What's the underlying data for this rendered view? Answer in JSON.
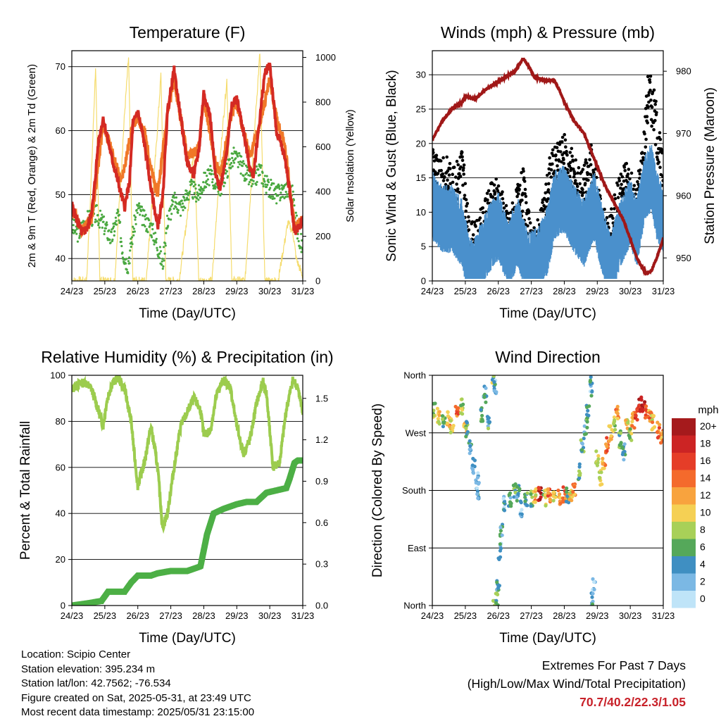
{
  "colors": {
    "temp_2m": "#d42a23",
    "temp_9m": "#f07828",
    "dewpoint": "#4aa840",
    "solar": "#f5dc6e",
    "wind": "#4a90cc",
    "gust": "#000000",
    "pressure": "#a01818",
    "rh": "#9ccc4e",
    "precip": "#4caf45",
    "extremes_text": "#c8222a"
  },
  "chart_data": [
    {
      "type": "line",
      "title": "Temperature (F)",
      "xlabel": "Time (Day/UTC)",
      "ylabel": "2m & 9m T (Red, Orange) & 2m Td (Green)",
      "y2label": "Solar Insolation (Yellow)",
      "x_ticks": [
        "24/23",
        "25/23",
        "26/23",
        "27/23",
        "28/23",
        "29/23",
        "30/23",
        "31/23"
      ],
      "xlim": [
        0,
        7
      ],
      "ylim": [
        36.5,
        72.5
      ],
      "y_ticks": [
        40,
        50,
        60,
        70
      ],
      "y2lim": [
        0,
        1030
      ],
      "y2_ticks": [
        0,
        200,
        400,
        600,
        800,
        1000
      ],
      "grid": "horizontal",
      "series": [
        {
          "name": "2m T",
          "axis": "left",
          "style": "line",
          "color_key": "temp_2m",
          "x": [
            0,
            0.15,
            0.3,
            0.5,
            0.65,
            0.8,
            0.95,
            1.2,
            1.5,
            1.6,
            1.75,
            1.85,
            2.0,
            2.2,
            2.4,
            2.6,
            2.75,
            2.9,
            3.1,
            3.3,
            3.5,
            3.7,
            3.85,
            4.0,
            4.2,
            4.35,
            4.5,
            4.7,
            4.85,
            5.0,
            5.2,
            5.4,
            5.5,
            5.7,
            5.85,
            6.0,
            6.2,
            6.45,
            6.6,
            6.75,
            6.9,
            7.0
          ],
          "y": [
            48.5,
            46,
            44,
            45,
            49,
            58,
            62,
            56,
            50,
            48,
            52,
            61,
            63,
            58,
            51,
            45,
            49,
            63,
            69.5,
            62,
            55,
            53,
            57,
            66,
            62,
            53,
            51,
            57,
            64,
            65,
            60,
            54,
            53,
            62,
            69,
            70.5,
            60,
            56,
            51,
            44,
            45,
            46
          ]
        },
        {
          "name": "9m T",
          "axis": "left",
          "style": "line",
          "color_key": "temp_9m",
          "x": [
            0,
            0.3,
            0.6,
            0.95,
            1.2,
            1.5,
            1.85,
            2.0,
            2.2,
            2.4,
            2.6,
            2.9,
            3.1,
            3.3,
            3.5,
            3.85,
            4.0,
            4.35,
            4.5,
            4.85,
            5.0,
            5.4,
            5.7,
            6.0,
            6.2,
            6.45,
            6.75,
            7.0
          ],
          "y": [
            48,
            44.5,
            46,
            61,
            57,
            52,
            61,
            62,
            60,
            54,
            50,
            63,
            68,
            62,
            56,
            57,
            65,
            55,
            53,
            63,
            64,
            56,
            61,
            68,
            62,
            58,
            45,
            46
          ]
        },
        {
          "name": "2m Td",
          "axis": "left",
          "style": "dots",
          "color_key": "dewpoint",
          "x": [
            0,
            0.2,
            0.45,
            0.75,
            1.0,
            1.2,
            1.4,
            1.55,
            1.7,
            1.85,
            2.0,
            2.2,
            2.4,
            2.6,
            2.75,
            2.9,
            3.1,
            3.3,
            3.6,
            3.85,
            4.0,
            4.2,
            4.5,
            4.7,
            4.9,
            5.1,
            5.3,
            5.5,
            5.7,
            5.85,
            6.0,
            6.2,
            6.5,
            6.7,
            6.85,
            7.0
          ],
          "y": [
            45,
            44,
            46,
            47,
            45,
            43,
            47,
            41,
            39,
            44,
            48,
            46,
            45,
            42,
            39,
            46,
            49,
            48,
            51,
            50,
            52,
            53,
            51,
            54,
            56,
            55,
            53,
            52,
            54,
            52,
            51,
            50,
            51,
            50,
            44,
            41.5
          ]
        },
        {
          "name": "Solar",
          "axis": "right",
          "style": "thin",
          "color_key": "solar",
          "x": [
            0,
            0.45,
            0.6,
            0.72,
            0.85,
            1.3,
            1.6,
            1.72,
            1.85,
            2.25,
            2.55,
            2.7,
            2.85,
            3.25,
            3.55,
            3.7,
            3.85,
            4.25,
            4.55,
            4.7,
            4.85,
            5.25,
            5.55,
            5.7,
            5.85,
            6.25,
            6.55,
            6.7,
            6.8,
            7.0
          ],
          "y": [
            0,
            0,
            500,
            960,
            0,
            0,
            750,
            1000,
            0,
            0,
            580,
            920,
            0,
            0,
            350,
            600,
            0,
            0,
            650,
            900,
            0,
            0,
            700,
            1020,
            0,
            0,
            260,
            220,
            100,
            20
          ]
        }
      ]
    },
    {
      "type": "line",
      "title": "Winds (mph) & Pressure (mb)",
      "xlabel": "Time (Day/UTC)",
      "ylabel": "Sonic Wind & Gust (Blue, Black)",
      "y2label": "Station Pressure (Maroon)",
      "x_ticks": [
        "24/23",
        "25/23",
        "26/23",
        "27/23",
        "28/23",
        "29/23",
        "30/23",
        "31/23"
      ],
      "xlim": [
        0,
        7
      ],
      "ylim": [
        0,
        33.5
      ],
      "y_ticks": [
        0,
        5,
        10,
        15,
        20,
        25,
        30
      ],
      "y2lim": [
        946.3,
        983.3
      ],
      "y2_ticks": [
        950,
        960,
        970,
        980
      ],
      "grid": "horizontal",
      "series": [
        {
          "name": "Wind",
          "axis": "left",
          "style": "band",
          "color_key": "wind",
          "x": [
            0,
            0.3,
            0.6,
            0.9,
            1.1,
            1.2,
            1.4,
            1.7,
            2.0,
            2.3,
            2.6,
            2.9,
            3.2,
            3.5,
            3.7,
            4.0,
            4.3,
            4.6,
            4.9,
            5.2,
            5.4,
            5.7,
            6.0,
            6.2,
            6.45,
            6.65,
            6.8,
            7.0
          ],
          "y": [
            12,
            10,
            10,
            8,
            3,
            2,
            4,
            7,
            9,
            5,
            8,
            3,
            4,
            7,
            12,
            13,
            10,
            8,
            12,
            6,
            3,
            8,
            11,
            8,
            15,
            16,
            12,
            10
          ]
        },
        {
          "name": "Gust",
          "axis": "left",
          "style": "dots",
          "color_key": "gust",
          "x": [
            0,
            0.2,
            0.45,
            0.65,
            0.9,
            1.1,
            1.3,
            1.55,
            1.8,
            2.0,
            2.3,
            2.55,
            2.75,
            3.0,
            3.3,
            3.55,
            3.8,
            4.0,
            4.3,
            4.55,
            4.8,
            5.1,
            5.35,
            5.65,
            5.9,
            6.15,
            6.4,
            6.55,
            6.75,
            6.95
          ],
          "y": [
            18,
            14,
            15,
            13,
            17,
            6,
            5,
            8,
            11,
            12,
            7,
            10,
            13,
            4,
            7,
            15,
            17,
            18,
            15,
            13,
            17,
            9,
            6,
            12,
            15,
            10,
            18,
            28,
            24,
            16
          ]
        },
        {
          "name": "Pressure",
          "axis": "right",
          "style": "line",
          "color_key": "pressure",
          "x": [
            0,
            0.3,
            0.6,
            0.9,
            1.0,
            1.3,
            1.6,
            1.9,
            2.2,
            2.5,
            2.75,
            2.9,
            3.1,
            3.4,
            3.7,
            3.85,
            4.0,
            4.3,
            4.6,
            4.9,
            5.2,
            5.5,
            5.8,
            6.0,
            6.2,
            6.35,
            6.5,
            6.65,
            6.8,
            7.0
          ],
          "y": [
            969,
            972,
            974,
            975,
            976,
            975.5,
            977,
            978,
            979,
            980,
            982,
            981,
            979,
            978.5,
            978.5,
            977,
            975,
            972,
            970,
            966,
            962,
            959,
            956,
            953,
            950,
            948.5,
            947.5,
            948,
            950,
            953
          ]
        }
      ]
    },
    {
      "type": "line",
      "title": "Relative Humidity (%) & Precipitation (in)",
      "xlabel": "Time (Day/UTC)",
      "ylabel": "Percent & Total Rainfall",
      "x_ticks": [
        "24/23",
        "25/23",
        "26/23",
        "27/23",
        "28/23",
        "29/23",
        "30/23",
        "31/23"
      ],
      "xlim": [
        0,
        7
      ],
      "ylim": [
        0,
        100
      ],
      "y_ticks": [
        0,
        20,
        40,
        60,
        80,
        100
      ],
      "y2lim": [
        0,
        1.667
      ],
      "y2_ticks": [
        "0.0",
        "0.3",
        "0.6",
        "0.9",
        "1.2",
        "1.5"
      ],
      "grid": "horizontal",
      "series": [
        {
          "name": "RH",
          "axis": "left",
          "style": "line",
          "color_key": "rh",
          "x": [
            0,
            0.2,
            0.4,
            0.6,
            0.8,
            0.95,
            1.05,
            1.2,
            1.4,
            1.6,
            1.8,
            1.9,
            2.0,
            2.2,
            2.4,
            2.6,
            2.75,
            2.9,
            3.1,
            3.3,
            3.5,
            3.7,
            3.9,
            4.0,
            4.2,
            4.4,
            4.6,
            4.8,
            5.0,
            5.2,
            5.4,
            5.6,
            5.8,
            5.9,
            6.1,
            6.3,
            6.5,
            6.7,
            6.85,
            7.0
          ],
          "y": [
            94,
            96,
            97,
            94,
            85,
            78,
            88,
            96,
            99,
            94,
            80,
            65,
            52,
            62,
            78,
            60,
            34,
            40,
            60,
            78,
            84,
            90,
            85,
            74,
            76,
            92,
            98,
            95,
            78,
            66,
            72,
            88,
            97,
            92,
            60,
            62,
            85,
            98,
            95,
            83
          ]
        },
        {
          "name": "Precip",
          "axis": "left",
          "style": "thick",
          "color_key": "precip",
          "x": [
            0,
            0.5,
            0.9,
            1.1,
            1.6,
            1.8,
            2.0,
            2.4,
            2.6,
            3.0,
            3.5,
            3.9,
            4.1,
            4.3,
            4.6,
            5.0,
            5.3,
            5.6,
            5.9,
            6.2,
            6.5,
            6.6,
            6.75,
            6.85,
            7.0
          ],
          "y": [
            0,
            1,
            2,
            6,
            6,
            10,
            13,
            13,
            14,
            15,
            15,
            17,
            31,
            40,
            42,
            44,
            45,
            45,
            49,
            50,
            51,
            55,
            62,
            63,
            63
          ]
        }
      ]
    },
    {
      "type": "scatter",
      "title": "Wind Direction",
      "xlabel": "Time (Day/UTC)",
      "ylabel": "Direction (Colored By Speed)",
      "x_ticks": [
        "24/23",
        "25/23",
        "26/23",
        "27/23",
        "28/23",
        "29/23",
        "30/23",
        "31/23"
      ],
      "xlim": [
        0,
        7
      ],
      "ylim": [
        0,
        360
      ],
      "y_ticks": [
        {
          "v": 0,
          "label": "North"
        },
        {
          "v": 90,
          "label": "East"
        },
        {
          "v": 180,
          "label": "South"
        },
        {
          "v": 270,
          "label": "West"
        },
        {
          "v": 360,
          "label": "North"
        }
      ],
      "grid": "horizontal",
      "colorbar": {
        "title": "mph",
        "labels": [
          "20+",
          "18",
          "16",
          "14",
          "12",
          "10",
          "8",
          "6",
          "4",
          "2",
          "0"
        ],
        "colors": [
          "#a51a1c",
          "#cc2424",
          "#e53d28",
          "#f46a2c",
          "#f8a33e",
          "#f5d054",
          "#a8d058",
          "#55a85a",
          "#3f8fc2",
          "#7bb8e4",
          "#bfe4f8"
        ]
      },
      "points": [
        [
          0.05,
          305,
          8
        ],
        [
          0.2,
          295,
          10
        ],
        [
          0.35,
          285,
          6
        ],
        [
          0.5,
          290,
          12
        ],
        [
          0.6,
          280,
          10
        ],
        [
          0.75,
          300,
          14
        ],
        [
          0.9,
          310,
          8
        ],
        [
          1.0,
          285,
          11
        ],
        [
          1.05,
          275,
          6
        ],
        [
          1.15,
          250,
          4
        ],
        [
          1.25,
          220,
          3
        ],
        [
          1.35,
          195,
          2
        ],
        [
          1.4,
          180,
          4
        ],
        [
          1.5,
          300,
          6
        ],
        [
          1.6,
          330,
          4
        ],
        [
          1.7,
          285,
          5
        ],
        [
          1.85,
          355,
          7
        ],
        [
          1.9,
          340,
          3
        ],
        [
          1.95,
          12,
          7
        ],
        [
          2.0,
          35,
          5
        ],
        [
          2.05,
          85,
          3
        ],
        [
          2.1,
          120,
          4
        ],
        [
          2.2,
          160,
          3
        ],
        [
          2.35,
          165,
          5
        ],
        [
          2.5,
          180,
          7
        ],
        [
          2.6,
          175,
          4
        ],
        [
          2.7,
          150,
          2
        ],
        [
          2.85,
          165,
          5
        ],
        [
          3.0,
          168,
          6
        ],
        [
          3.1,
          170,
          11
        ],
        [
          3.25,
          175,
          18
        ],
        [
          3.4,
          168,
          8
        ],
        [
          3.55,
          175,
          14
        ],
        [
          3.7,
          165,
          9
        ],
        [
          3.85,
          170,
          12
        ],
        [
          4.0,
          175,
          15
        ],
        [
          4.1,
          172,
          6
        ],
        [
          4.2,
          168,
          10
        ],
        [
          4.3,
          185,
          12
        ],
        [
          4.45,
          210,
          6
        ],
        [
          4.55,
          250,
          5
        ],
        [
          4.65,
          280,
          4
        ],
        [
          4.72,
          300,
          6
        ],
        [
          4.8,
          340,
          3
        ],
        [
          4.85,
          10,
          4
        ],
        [
          4.9,
          30,
          2
        ],
        [
          5.0,
          230,
          8
        ],
        [
          5.1,
          200,
          10
        ],
        [
          5.2,
          220,
          12
        ],
        [
          5.3,
          250,
          14
        ],
        [
          5.4,
          270,
          11
        ],
        [
          5.5,
          285,
          9
        ],
        [
          5.6,
          300,
          13
        ],
        [
          5.7,
          260,
          6
        ],
        [
          5.8,
          240,
          4
        ],
        [
          5.9,
          280,
          10
        ],
        [
          6.0,
          270,
          8
        ],
        [
          6.1,
          290,
          12
        ],
        [
          6.2,
          300,
          16
        ],
        [
          6.3,
          315,
          18
        ],
        [
          6.4,
          310,
          20
        ],
        [
          6.5,
          305,
          15
        ],
        [
          6.6,
          295,
          13
        ],
        [
          6.7,
          285,
          11
        ],
        [
          6.85,
          275,
          14
        ],
        [
          6.95,
          265,
          12
        ]
      ]
    }
  ],
  "info": {
    "location": "Location: Scipio Center",
    "elevation": "Station elevation: 395.234 m",
    "latlon": "Station lat/lon: 42.7562; -76.534",
    "created": "Figure created on Sat, 2025-05-31, at 23:49 UTC",
    "recent": "Most recent data timestamp: 2025/05/31 23:15:00"
  },
  "extremes": {
    "line1": "Extremes For Past 7 Days",
    "line2": "(High/Low/Max Wind/Total Precipitation)",
    "values": "70.7/40.2/22.3/1.05"
  }
}
